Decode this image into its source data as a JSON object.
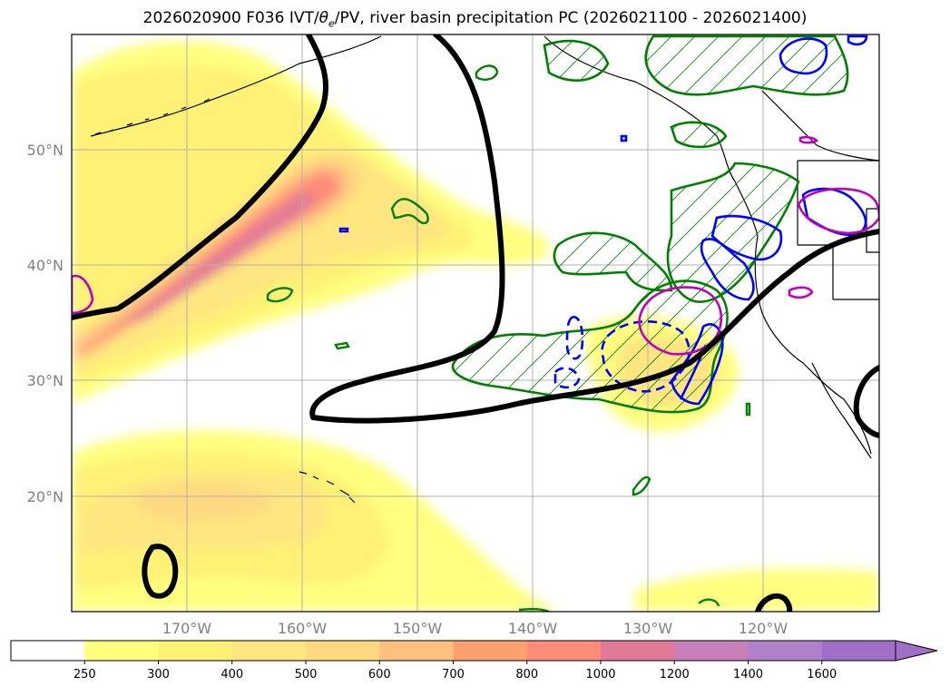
{
  "title": {
    "prefix": "2026020900 F036 IVT/",
    "theta": "θ",
    "theta_sub": "e",
    "suffix": "/PV, river basin precipitation PC (2026021100 - 2026021400)"
  },
  "axes": {
    "lat_labels": [
      "50°N",
      "40°N",
      "30°N",
      "20°N"
    ],
    "lon_labels": [
      "170°W",
      "160°W",
      "150°W",
      "140°W",
      "130°W",
      "120°W"
    ]
  },
  "colorbar": {
    "levels": [
      "250",
      "300",
      "400",
      "500",
      "600",
      "700",
      "800",
      "1000",
      "1200",
      "1400",
      "1600"
    ],
    "colors": [
      "#ffffff",
      "#ffff80",
      "#fff176",
      "#ffe680",
      "#ffd980",
      "#ffc080",
      "#ffa070",
      "#ff8c78",
      "#e07a98",
      "#c880b8",
      "#b080c8",
      "#a070c8"
    ]
  },
  "colors": {
    "ivt_low": "#ffff80",
    "ivt_mid": "#ffd980",
    "ivt_high": "#ff8c78",
    "ivt_core": "#e07a98",
    "pv_contour": "#000000",
    "theta_contour_green": "#008000",
    "blue_contour": "#0000ff",
    "magenta_contour": "#c000c0",
    "grid": "#b0b0b0",
    "tick_label": "#808080"
  },
  "chart_data": {
    "type": "heatmap",
    "variable": "IVT",
    "colorbar_levels": [
      250,
      300,
      400,
      500,
      600,
      700,
      800,
      1000,
      1200,
      1400,
      1600
    ],
    "lon_range": [
      -180,
      -110
    ],
    "lat_range": [
      10,
      60
    ],
    "lon_ticks": [
      -170,
      -160,
      -150,
      -140,
      -130,
      -120
    ],
    "lat_ticks": [
      20,
      30,
      40,
      50
    ]
  }
}
